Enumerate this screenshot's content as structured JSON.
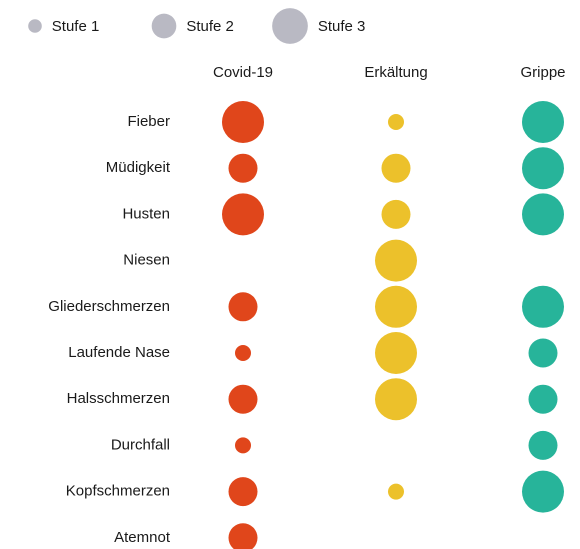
{
  "chart_data": {
    "type": "bubble",
    "legend": [
      {
        "label": "Stufe 1",
        "value": 1
      },
      {
        "label": "Stufe 2",
        "value": 2
      },
      {
        "label": "Stufe 3",
        "value": 3
      }
    ],
    "legend_color": "#b9b9c3",
    "categories": [
      "Fieber",
      "Müdigkeit",
      "Husten",
      "Niesen",
      "Gliederschmerzen",
      "Laufende Nase",
      "Halsschmerzen",
      "Durchfall",
      "Kopfschmerzen",
      "Atemnot"
    ],
    "series": [
      {
        "name": "Covid-19",
        "color": "#e0461b",
        "values": [
          3,
          2,
          3,
          null,
          2,
          1,
          2,
          1,
          2,
          2
        ]
      },
      {
        "name": "Erkältung",
        "color": "#ecc12b",
        "values": [
          1,
          2,
          2,
          3,
          3,
          3,
          3,
          null,
          1,
          null
        ]
      },
      {
        "name": "Grippe",
        "color": "#27b49a",
        "values": [
          3,
          3,
          3,
          null,
          3,
          2,
          2,
          2,
          3,
          null
        ]
      }
    ]
  }
}
